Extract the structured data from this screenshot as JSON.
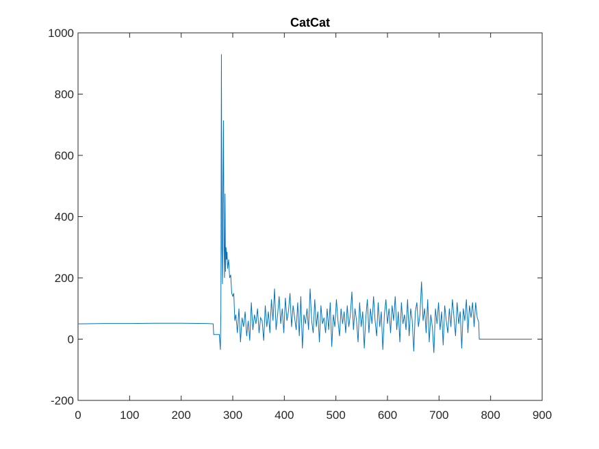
{
  "chart_data": {
    "type": "line",
    "title": "CatCat",
    "x": [
      1,
      50,
      100,
      150,
      200,
      250,
      262,
      263,
      274,
      276,
      277,
      278,
      279,
      280,
      281,
      282,
      283,
      284,
      285,
      286,
      287,
      288,
      289,
      290,
      292,
      294,
      296,
      298,
      300,
      302,
      304,
      306,
      309,
      312,
      315,
      318,
      321,
      324,
      327,
      330,
      333,
      336,
      339,
      342,
      345,
      348,
      351,
      354,
      357,
      360,
      363,
      366,
      369,
      372,
      375,
      378,
      381,
      384,
      387,
      390,
      393,
      396,
      399,
      402,
      405,
      408,
      411,
      414,
      417,
      420,
      423,
      426,
      429,
      432,
      435,
      438,
      441,
      444,
      447,
      450,
      453,
      456,
      459,
      462,
      465,
      468,
      471,
      474,
      477,
      480,
      483,
      486,
      489,
      492,
      495,
      498,
      501,
      504,
      507,
      510,
      513,
      516,
      519,
      522,
      525,
      528,
      531,
      534,
      537,
      540,
      543,
      546,
      549,
      552,
      555,
      558,
      561,
      564,
      567,
      570,
      573,
      576,
      579,
      582,
      585,
      588,
      591,
      594,
      597,
      600,
      603,
      606,
      609,
      612,
      615,
      618,
      621,
      624,
      627,
      630,
      633,
      636,
      639,
      642,
      645,
      648,
      651,
      654,
      657,
      660,
      663,
      666,
      669,
      672,
      675,
      678,
      681,
      684,
      687,
      690,
      693,
      696,
      699,
      702,
      705,
      708,
      711,
      714,
      717,
      720,
      723,
      726,
      729,
      732,
      735,
      738,
      741,
      744,
      747,
      750,
      753,
      756,
      759,
      762,
      765,
      768,
      771,
      774,
      777,
      778,
      880
    ],
    "values": [
      50,
      51,
      51,
      52,
      52,
      51,
      50,
      15,
      15,
      -35,
      100,
      930,
      300,
      180,
      500,
      714,
      300,
      200,
      475,
      220,
      300,
      260,
      285,
      230,
      260,
      200,
      210,
      150,
      140,
      150,
      60,
      80,
      20,
      100,
      -10,
      70,
      40,
      90,
      10,
      60,
      -5,
      120,
      30,
      80,
      50,
      100,
      20,
      70,
      60,
      -5,
      110,
      40,
      90,
      20,
      130,
      60,
      165,
      30,
      80,
      140,
      50,
      100,
      20,
      135,
      60,
      90,
      150,
      40,
      110,
      70,
      30,
      120,
      10,
      140,
      -30,
      80,
      50,
      100,
      30,
      165,
      60,
      20,
      130,
      40,
      90,
      -10,
      110,
      50,
      70,
      20,
      100,
      30,
      120,
      -25,
      80,
      40,
      130,
      60,
      10,
      100,
      50,
      90,
      20,
      110,
      40,
      80,
      155,
      30,
      100,
      60,
      -10,
      120,
      40,
      90,
      -30,
      70,
      130,
      20,
      100,
      50,
      140,
      60,
      10,
      120,
      40,
      90,
      -35,
      80,
      130,
      50,
      100,
      20,
      110,
      60,
      140,
      30,
      90,
      -10,
      120,
      50,
      80,
      30,
      130,
      10,
      100,
      60,
      -40,
      90,
      120,
      40,
      80,
      188,
      60,
      100,
      20,
      130,
      -10,
      80,
      40,
      -45,
      100,
      50,
      120,
      30,
      90,
      -20,
      110,
      60,
      20,
      100,
      40,
      130,
      70,
      10,
      120,
      50,
      90,
      -30,
      100,
      60,
      130,
      20,
      110,
      70,
      120,
      40,
      120,
      70,
      55,
      0,
      0
    ],
    "color": "#0072bd",
    "xlim": [
      0,
      900
    ],
    "xticks": [
      0,
      100,
      200,
      300,
      400,
      500,
      600,
      700,
      800,
      900
    ],
    "ylim": [
      -200,
      1000
    ],
    "yticks": [
      -200,
      0,
      200,
      400,
      600,
      800,
      1000
    ]
  }
}
